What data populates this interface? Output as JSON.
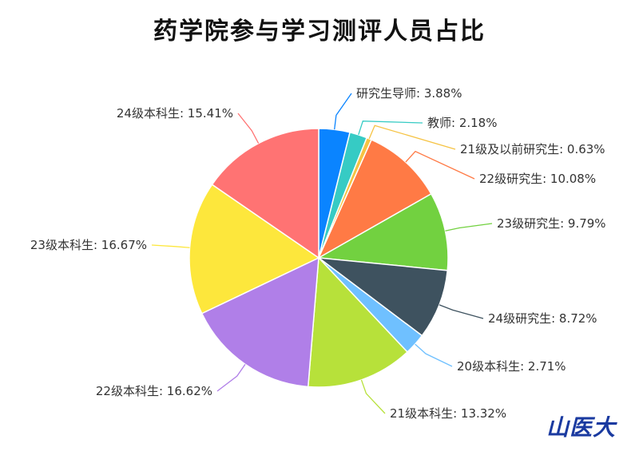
{
  "logo_text": "山医大",
  "chart_data": {
    "type": "pie",
    "title": "药学院参与学习测评人员占比",
    "label_format": "{name}: {value}%",
    "start_angle": "top",
    "direction": "clockwise",
    "slices": [
      {
        "name": "研究生导师",
        "value": 3.88,
        "color": "#0a84ff"
      },
      {
        "name": "教师",
        "value": 2.18,
        "color": "#36cbc4"
      },
      {
        "name": "21级及以前研究生",
        "value": 0.63,
        "color": "#f6c343"
      },
      {
        "name": "22级研究生",
        "value": 10.08,
        "color": "#ff7a45"
      },
      {
        "name": "23级研究生",
        "value": 9.79,
        "color": "#72d140"
      },
      {
        "name": "24级研究生",
        "value": 8.72,
        "color": "#3e525f"
      },
      {
        "name": "20级本科生",
        "value": 2.71,
        "color": "#6fc0ff"
      },
      {
        "name": "21级本科生",
        "value": 13.32,
        "color": "#b7e13a"
      },
      {
        "name": "22级本科生",
        "value": 16.62,
        "color": "#b07fe8"
      },
      {
        "name": "23级本科生",
        "value": 16.67,
        "color": "#fde73c"
      },
      {
        "name": "24级本科生",
        "value": 15.41,
        "color": "#ff7373"
      }
    ]
  }
}
